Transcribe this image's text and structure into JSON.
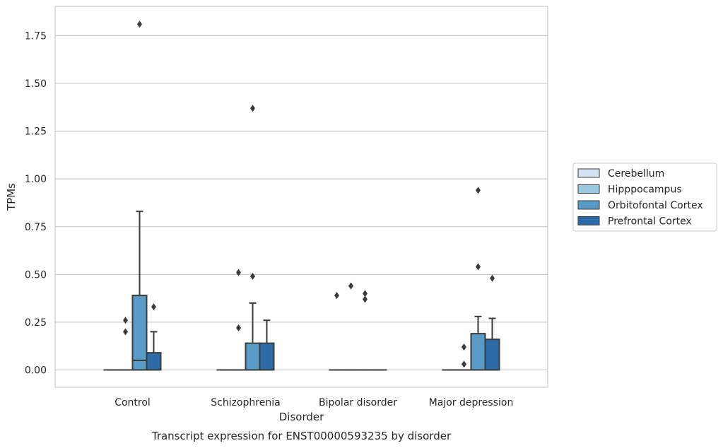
{
  "chart_data": {
    "type": "box",
    "caption": "Transcript expression for ENST00000593235 by disorder",
    "xlabel": "Disorder",
    "ylabel": "TPMs",
    "ylim": [
      -0.09,
      1.91
    ],
    "yticks": [
      0.0,
      0.25,
      0.5,
      0.75,
      1.0,
      1.25,
      1.5,
      1.75
    ],
    "ytick_labels": [
      "0.00",
      "0.25",
      "0.50",
      "0.75",
      "1.00",
      "1.25",
      "1.50",
      "1.75"
    ],
    "grid": true,
    "legend_position": "right",
    "categories": [
      "Control",
      "Schizophrenia",
      "Bipolar disorder",
      "Major depression"
    ],
    "series": [
      {
        "name": "Cerebellum",
        "color": "#d2e3f3",
        "boxes": [
          {
            "q1": 0,
            "median": 0,
            "q3": 0,
            "whisker_low": 0,
            "whisker_high": 0,
            "outliers": []
          },
          {
            "q1": 0,
            "median": 0,
            "q3": 0,
            "whisker_low": 0,
            "whisker_high": 0,
            "outliers": []
          },
          {
            "q1": 0,
            "median": 0,
            "q3": 0,
            "whisker_low": 0,
            "whisker_high": 0,
            "outliers": [
              0.39
            ]
          },
          {
            "q1": 0,
            "median": 0,
            "q3": 0,
            "whisker_low": 0,
            "whisker_high": 0,
            "outliers": []
          }
        ]
      },
      {
        "name": "Hipppocampus",
        "color": "#9ac8e0",
        "boxes": [
          {
            "q1": 0,
            "median": 0,
            "q3": 0,
            "whisker_low": 0,
            "whisker_high": 0,
            "outliers": [
              0.26,
              0.2
            ]
          },
          {
            "q1": 0,
            "median": 0,
            "q3": 0,
            "whisker_low": 0,
            "whisker_high": 0,
            "outliers": [
              0.51,
              0.22
            ]
          },
          {
            "q1": 0,
            "median": 0,
            "q3": 0,
            "whisker_low": 0,
            "whisker_high": 0,
            "outliers": [
              0.44
            ]
          },
          {
            "q1": 0,
            "median": 0,
            "q3": 0,
            "whisker_low": 0,
            "whisker_high": 0,
            "outliers": [
              0.12,
              0.03
            ]
          }
        ]
      },
      {
        "name": "Orbitofontal Cortex",
        "color": "#5a9ac6",
        "boxes": [
          {
            "q1": 0,
            "median": 0.05,
            "q3": 0.39,
            "whisker_low": 0,
            "whisker_high": 0.83,
            "outliers": [
              1.81
            ]
          },
          {
            "q1": 0,
            "median": 0,
            "q3": 0.14,
            "whisker_low": 0,
            "whisker_high": 0.35,
            "outliers": [
              0.49,
              1.37
            ]
          },
          {
            "q1": 0,
            "median": 0,
            "q3": 0,
            "whisker_low": 0,
            "whisker_high": 0,
            "outliers": [
              0.4,
              0.37
            ]
          },
          {
            "q1": 0,
            "median": 0,
            "q3": 0.19,
            "whisker_low": 0,
            "whisker_high": 0.28,
            "outliers": [
              0.54,
              0.94
            ]
          }
        ]
      },
      {
        "name": "Prefrontal Cortex",
        "color": "#2c6aa8",
        "boxes": [
          {
            "q1": 0,
            "median": 0,
            "q3": 0.09,
            "whisker_low": 0,
            "whisker_high": 0.2,
            "outliers": [
              0.33
            ]
          },
          {
            "q1": 0,
            "median": 0,
            "q3": 0.14,
            "whisker_low": 0,
            "whisker_high": 0.26,
            "outliers": []
          },
          {
            "q1": 0,
            "median": 0,
            "q3": 0,
            "whisker_low": 0,
            "whisker_high": 0,
            "outliers": []
          },
          {
            "q1": 0,
            "median": 0,
            "q3": 0.16,
            "whisker_low": 0,
            "whisker_high": 0.27,
            "outliers": [
              0.48
            ]
          }
        ]
      }
    ]
  }
}
